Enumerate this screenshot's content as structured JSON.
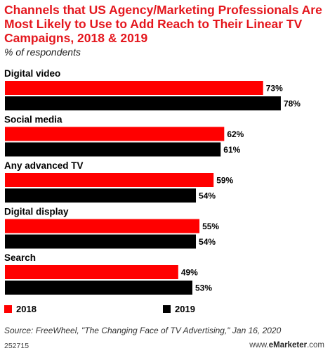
{
  "title": "Channels that US Agency/Marketing Professionals Are Most Likely to Use to Add Reach to Their Linear TV Campaigns, 2018 & 2019",
  "subtitle": "% of respondents",
  "colors": {
    "series_2018": "#ff0000",
    "series_2019": "#000000"
  },
  "chart_data": {
    "type": "bar",
    "orientation": "horizontal",
    "categories": [
      "Digital video",
      "Social media",
      "Any advanced TV",
      "Digital display",
      "Search"
    ],
    "series": [
      {
        "name": "2018",
        "values": [
          73,
          62,
          59,
          55,
          49
        ],
        "labels": [
          "73%",
          "62%",
          "59%",
          "55%",
          "49%"
        ]
      },
      {
        "name": "2019",
        "values": [
          78,
          61,
          54,
          54,
          53
        ],
        "labels": [
          "78%",
          "61%",
          "54%",
          "54%",
          "53%"
        ]
      }
    ],
    "xlim": [
      0,
      80
    ],
    "legend_position": "bottom",
    "grid": false
  },
  "legend": {
    "item_2018": "2018",
    "item_2019": "2019"
  },
  "source": "Source: FreeWheel, \"The Changing Face of TV Advertising,\" Jan 16, 2020",
  "footer": {
    "chart_id": "252715",
    "brand_prefix": "www.",
    "brand_name": "eMarketer",
    "brand_suffix": ".com"
  }
}
